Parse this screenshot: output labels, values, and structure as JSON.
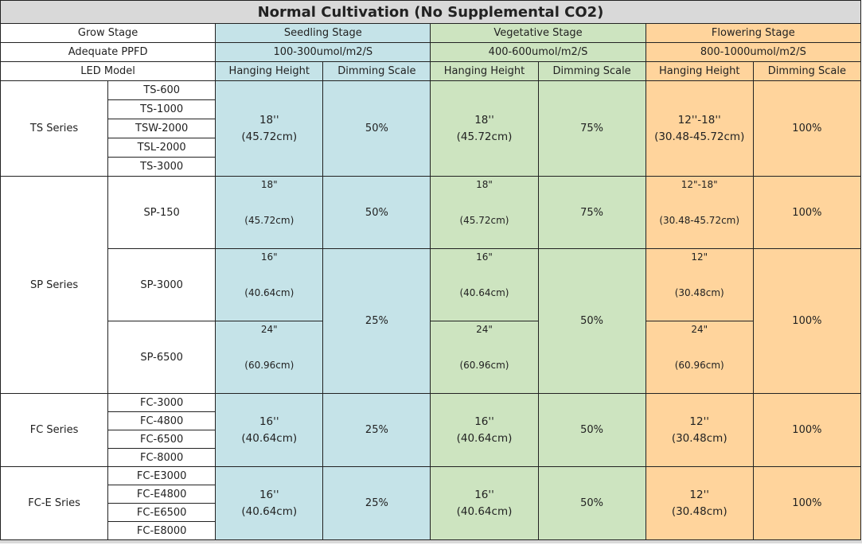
{
  "title": "Normal Cultivation (No Supplemental CO2)",
  "labels": {
    "grow_stage": "Grow Stage",
    "adequate_ppfd": "Adequate PPFD",
    "led_model": "LED Model",
    "hanging_height": "Hanging Height",
    "dimming_scale": "Dimming Scale"
  },
  "stages": [
    {
      "name": "Seedling Stage",
      "ppfd": "100-300umol/m2/S"
    },
    {
      "name": "Vegetative Stage",
      "ppfd": "400-600umol/m2/S"
    },
    {
      "name": "Flowering Stage",
      "ppfd": "800-1000umol/m2/S"
    }
  ],
  "colors": {
    "seedling": "#c5e3e8",
    "vegetative": "#cde4c0",
    "flowering": "#ffd49c",
    "title_bg": "#d9d9d9"
  },
  "ts": {
    "series": "TS Series",
    "models": [
      "TS-600",
      "TS-1000",
      "TSW-2000",
      "TSL-2000",
      "TS-3000"
    ],
    "seed_h1": "18''",
    "seed_h2": "(45.72cm)",
    "seed_dim": "50%",
    "veg_h1": "18''",
    "veg_h2": "(45.72cm)",
    "veg_dim": "75%",
    "flow_h1": "12''-18''",
    "flow_h2": "(30.48-45.72cm)",
    "flow_dim": "100%"
  },
  "sp": {
    "series": "SP Series",
    "sp150": {
      "model": "SP-150",
      "seed_h1": "18\"",
      "seed_h2": "(45.72cm)",
      "seed_dim": "50%",
      "veg_h1": "18\"",
      "veg_h2": "(45.72cm)",
      "veg_dim": "75%",
      "flow_h1": "12\"-18\"",
      "flow_h2": "(30.48-45.72cm)",
      "flow_dim": "100%"
    },
    "sp3000": {
      "model": "SP-3000",
      "seed_h1": "16\"",
      "seed_h2": "(40.64cm)",
      "veg_h1": "16\"",
      "veg_h2": "(40.64cm)",
      "flow_h1": "12\"",
      "flow_h2": "(30.48cm)"
    },
    "sp6500": {
      "model": "SP-6500",
      "seed_h1": "24\"",
      "seed_h2": "(60.96cm)",
      "veg_h1": "24\"",
      "veg_h2": "(60.96cm)",
      "flow_h1": "24\"",
      "flow_h2": "(60.96cm)"
    },
    "seed_dim_shared": "25%",
    "veg_dim_shared": "50%",
    "flow_dim_shared": "100%"
  },
  "fc": {
    "series": "FC Series",
    "models": [
      "FC-3000",
      "FC-4800",
      "FC-6500",
      "FC-8000"
    ],
    "seed_h1": "16''",
    "seed_h2": "(40.64cm)",
    "seed_dim": "25%",
    "veg_h1": "16''",
    "veg_h2": "(40.64cm)",
    "veg_dim": "50%",
    "flow_h1": "12''",
    "flow_h2": "(30.48cm)",
    "flow_dim": "100%"
  },
  "fce": {
    "series": "FC-E Sries",
    "models": [
      "FC-E3000",
      "FC-E4800",
      "FC-E6500",
      "FC-E8000"
    ],
    "seed_h1": "16''",
    "seed_h2": "(40.64cm)",
    "seed_dim": "25%",
    "veg_h1": "16''",
    "veg_h2": "(40.64cm)",
    "veg_dim": "50%",
    "flow_h1": "12''",
    "flow_h2": "(30.48cm)",
    "flow_dim": "100%"
  }
}
